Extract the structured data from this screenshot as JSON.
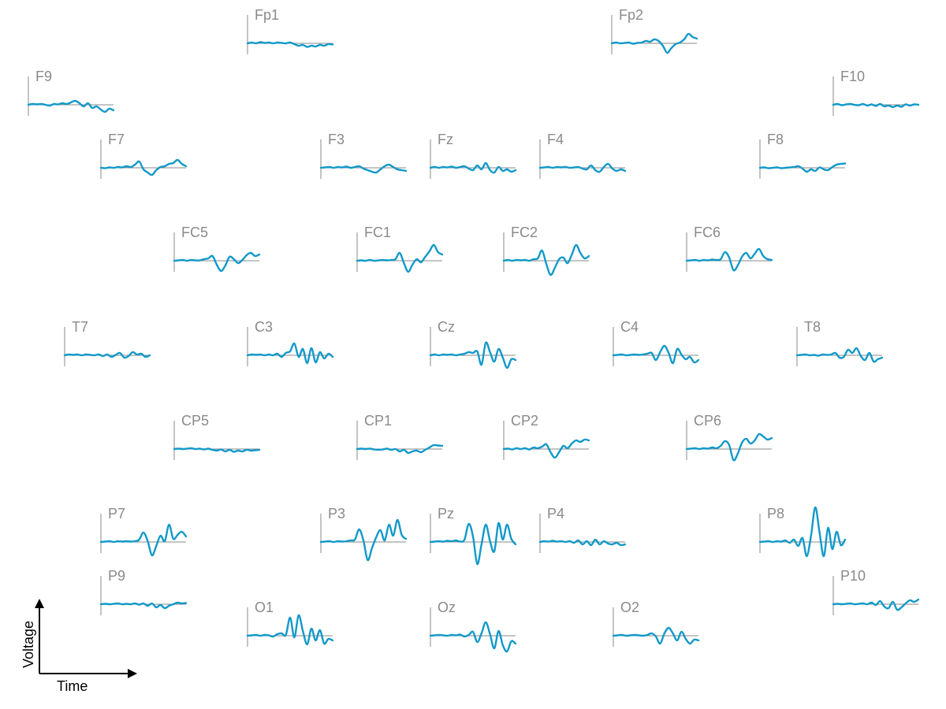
{
  "chart_data": {
    "type": "line",
    "layout": "topographic",
    "title": "",
    "grid": false,
    "colors": {
      "trace": "#1199c9",
      "axis": "#888888",
      "label": "#8a8a8a",
      "legend": "#000000"
    },
    "legend": {
      "xlabel": "Time",
      "ylabel": "Voltage",
      "placement": "bottom-left"
    },
    "time_samples": 21,
    "channels": [
      {
        "name": "Fp1",
        "values": [
          0,
          0.1,
          0,
          0.15,
          0.05,
          0.1,
          0,
          0.1,
          0.05,
          0,
          0.1,
          -0.1,
          -0.3,
          -0.2,
          -0.45,
          -0.3,
          -0.4,
          -0.2,
          -0.3,
          -0.1,
          -0.15
        ]
      },
      {
        "name": "Fp2",
        "values": [
          0,
          0.1,
          0,
          0.05,
          0.1,
          -0.05,
          0.05,
          0.1,
          0.3,
          0.2,
          0.5,
          0.3,
          -0.3,
          -1.2,
          -0.6,
          -0.1,
          0.1,
          0.5,
          1.2,
          0.8,
          0.6
        ]
      },
      {
        "name": "F9",
        "values": [
          0,
          0.1,
          0.05,
          0.1,
          0,
          -0.1,
          0.1,
          0.05,
          0.2,
          0.1,
          0.3,
          0.5,
          0.2,
          -0.2,
          0.2,
          -0.4,
          -0.2,
          -0.6,
          -0.9,
          -0.5,
          -0.7
        ]
      },
      {
        "name": "F10",
        "values": [
          0,
          0.1,
          -0.05,
          0.05,
          0.1,
          0,
          -0.05,
          0.1,
          -0.1,
          0.05,
          -0.15,
          0.1,
          -0.2,
          -0.1,
          -0.3,
          -0.1,
          -0.25,
          0.05,
          -0.1,
          0.05,
          0
        ]
      },
      {
        "name": "F7",
        "values": [
          0,
          -0.05,
          0.05,
          0,
          0.1,
          0.05,
          0.2,
          0.1,
          0.4,
          0.8,
          -0.2,
          -0.6,
          -0.9,
          -0.3,
          0.1,
          0.2,
          0.5,
          0.6,
          1.0,
          0.5,
          0.2
        ]
      },
      {
        "name": "F3",
        "values": [
          0,
          0.05,
          0.1,
          0,
          0.1,
          0.05,
          0.15,
          0,
          0.1,
          0.2,
          -0.1,
          -0.3,
          -0.5,
          -0.6,
          -0.2,
          0.2,
          0.4,
          0.1,
          -0.2,
          -0.3,
          -0.4
        ]
      },
      {
        "name": "Fz",
        "values": [
          0,
          0.1,
          0,
          0.1,
          0.05,
          0.15,
          0,
          0.1,
          0.2,
          -0.1,
          -0.3,
          0.3,
          -0.2,
          0.6,
          -0.3,
          -0.6,
          0.1,
          -0.4,
          -0.2,
          -0.5,
          -0.3
        ]
      },
      {
        "name": "F4",
        "values": [
          0,
          0.05,
          0.1,
          0,
          0.1,
          0.05,
          0.1,
          0,
          0.05,
          0.1,
          -0.1,
          -0.2,
          0.3,
          -0.3,
          -0.5,
          0.1,
          0.5,
          -0.1,
          -0.4,
          -0.2,
          -0.4
        ]
      },
      {
        "name": "F8",
        "values": [
          0,
          0.05,
          -0.05,
          0,
          0.05,
          -0.05,
          0,
          0.05,
          0.1,
          0.2,
          -0.1,
          -0.5,
          -0.2,
          -0.4,
          0.05,
          -0.2,
          -0.3,
          0.1,
          0.4,
          0.5,
          0.55
        ]
      },
      {
        "name": "FC5",
        "values": [
          0,
          0.05,
          0.1,
          0,
          0.1,
          0.05,
          0.05,
          0.2,
          0.3,
          0.6,
          -0.5,
          -1.3,
          -0.6,
          0.5,
          0.2,
          -0.3,
          0.1,
          0.7,
          1.0,
          0.6,
          0.8
        ]
      },
      {
        "name": "FC1",
        "values": [
          0,
          0.05,
          0,
          0.1,
          0,
          0.05,
          0.1,
          0.05,
          0.1,
          0.2,
          1.0,
          -0.3,
          -1.4,
          -0.5,
          0.2,
          -0.2,
          0.5,
          1.2,
          2.0,
          1.1,
          0.8
        ]
      },
      {
        "name": "FC2",
        "values": [
          0,
          0.1,
          0,
          0.1,
          0.05,
          0.1,
          0,
          0.2,
          0.3,
          1.3,
          -0.4,
          -1.8,
          -0.9,
          0.2,
          0.4,
          -0.3,
          0.8,
          2.0,
          1.0,
          0.3,
          0.6
        ]
      },
      {
        "name": "FC6",
        "values": [
          0,
          0.05,
          0.1,
          0,
          0.1,
          0.05,
          0.15,
          0.1,
          0.2,
          1.1,
          0.4,
          -1.2,
          -0.6,
          0.5,
          1.0,
          0.3,
          0.9,
          1.5,
          0.6,
          0.2,
          0.1
        ]
      },
      {
        "name": "T7",
        "values": [
          0,
          0.1,
          0.05,
          0.1,
          0,
          0.1,
          0.05,
          0,
          0.1,
          -0.1,
          0.1,
          -0.2,
          0.05,
          0.3,
          -0.3,
          -0.1,
          0.4,
          0.1,
          0.2,
          -0.2,
          0
        ]
      },
      {
        "name": "C3",
        "values": [
          0,
          0.1,
          0.05,
          0.1,
          0,
          0.1,
          0,
          0.2,
          -0.2,
          0.3,
          0.5,
          1.5,
          -0.2,
          0.8,
          -1.0,
          0.9,
          -0.9,
          0.4,
          -0.4,
          0.2,
          -0.2
        ]
      },
      {
        "name": "Cz",
        "values": [
          0,
          0.1,
          0,
          0.1,
          0.05,
          0.1,
          0,
          0.1,
          0.2,
          0.4,
          0.3,
          0.5,
          -1.2,
          1.6,
          0.4,
          -0.8,
          0.8,
          -0.3,
          -1.6,
          -0.5,
          -0.6
        ]
      },
      {
        "name": "C4",
        "values": [
          0,
          0.05,
          0.1,
          0,
          0.05,
          0.1,
          0.05,
          0.1,
          0.2,
          0.3,
          -0.6,
          0.4,
          1.2,
          0.3,
          -1.0,
          0.8,
          0.1,
          -0.5,
          -0.2,
          -0.9,
          -0.6
        ]
      },
      {
        "name": "T8",
        "values": [
          0,
          0.05,
          0.1,
          0,
          0.05,
          -0.05,
          0.1,
          0.05,
          0.1,
          0.3,
          -0.3,
          -0.2,
          0.7,
          0.3,
          0.9,
          -0.1,
          -0.6,
          0.3,
          -0.8,
          -0.5,
          -0.3
        ]
      },
      {
        "name": "CP5",
        "values": [
          0,
          0.05,
          0,
          0.05,
          0.1,
          0,
          0.05,
          -0.05,
          0.05,
          -0.1,
          -0.2,
          -0.05,
          -0.3,
          -0.1,
          -0.35,
          -0.2,
          -0.3,
          -0.1,
          -0.2,
          -0.15,
          -0.1
        ]
      },
      {
        "name": "CP1",
        "values": [
          0,
          0.05,
          0,
          0.05,
          -0.05,
          -0.1,
          -0.05,
          0.05,
          -0.1,
          0,
          -0.3,
          -0.1,
          -0.5,
          -0.3,
          -0.2,
          -0.4,
          -0.1,
          0.2,
          0.5,
          0.45,
          0.4
        ]
      },
      {
        "name": "CP2",
        "values": [
          0,
          0.05,
          -0.05,
          0.1,
          0,
          0.1,
          -0.05,
          0.2,
          0.1,
          0.3,
          0.6,
          -0.4,
          -1.1,
          -0.4,
          0.4,
          0.1,
          0.7,
          1.1,
          0.9,
          1.2,
          1.1
        ]
      },
      {
        "name": "CP6",
        "values": [
          0,
          0.05,
          0.1,
          0,
          0.1,
          0.05,
          0.2,
          0.1,
          0.4,
          1.0,
          0.5,
          -1.4,
          -0.6,
          0.8,
          1.3,
          0.7,
          1.1,
          1.9,
          1.6,
          1.2,
          1.4
        ]
      },
      {
        "name": "P7",
        "values": [
          0,
          0.05,
          0.1,
          0,
          0.1,
          0.05,
          0.1,
          0.05,
          0.1,
          0.3,
          1.2,
          0.1,
          -1.7,
          -0.5,
          0.8,
          0.1,
          2.2,
          0.4,
          0.9,
          1.3,
          0.7
        ]
      },
      {
        "name": "P3",
        "values": [
          0,
          0.05,
          0.1,
          0,
          0.1,
          0.05,
          0.1,
          0.2,
          0.3,
          1.6,
          0.2,
          -2.3,
          -0.8,
          0.6,
          1.5,
          0.2,
          2.2,
          0.8,
          2.8,
          0.9,
          0.4
        ]
      },
      {
        "name": "Pz",
        "values": [
          0,
          0.05,
          0.1,
          0.05,
          0.15,
          0.1,
          0.2,
          0.05,
          0.3,
          2.3,
          0.7,
          -2.8,
          -0.3,
          2.2,
          0.1,
          -1.2,
          2.4,
          0.3,
          2.2,
          0.4,
          -0.3
        ]
      },
      {
        "name": "P4",
        "values": [
          0,
          0.1,
          0.05,
          0.15,
          0.05,
          0.1,
          0,
          0.1,
          -0.1,
          0.2,
          -0.3,
          0.1,
          -0.4,
          0.3,
          -0.3,
          0.1,
          -0.2,
          -0.3,
          -0.1,
          -0.4,
          -0.3
        ]
      },
      {
        "name": "P8",
        "values": [
          0,
          0.05,
          0.1,
          0,
          0.1,
          0.05,
          0.2,
          -0.1,
          0.3,
          -0.5,
          0.5,
          -1.8,
          0.8,
          4.4,
          1.2,
          -1.8,
          1.8,
          -0.9,
          1.3,
          -0.4,
          0.3
        ]
      },
      {
        "name": "P9",
        "values": [
          0,
          0.05,
          0,
          0.05,
          0.1,
          0,
          0.05,
          0,
          0.1,
          -0.05,
          0.1,
          -0.2,
          0.1,
          -0.4,
          -0.1,
          -0.5,
          -0.2,
          0,
          0.2,
          0.1,
          0.15
        ]
      },
      {
        "name": "P10",
        "values": [
          0,
          0.05,
          0,
          0.05,
          0.1,
          0,
          0.05,
          0.1,
          0,
          0.2,
          -0.1,
          0.4,
          -0.3,
          -0.5,
          0.3,
          -0.7,
          -0.4,
          0.1,
          0.5,
          0.3,
          0.6
        ]
      },
      {
        "name": "O1",
        "values": [
          0,
          0.05,
          0.1,
          0,
          0.1,
          0.05,
          -0.1,
          0.2,
          0.3,
          0.1,
          2.3,
          -0.2,
          2.6,
          0.6,
          -1.1,
          0.9,
          -0.6,
          0.7,
          -1.0,
          -0.4,
          -0.6
        ]
      },
      {
        "name": "Oz",
        "values": [
          0,
          0.05,
          0.1,
          0.05,
          0,
          0.1,
          0.05,
          0.15,
          -0.1,
          0.1,
          0.5,
          -0.8,
          0.3,
          1.7,
          0.2,
          -1.6,
          0.6,
          -1.2,
          -2.0,
          -0.7,
          -1.0
        ]
      },
      {
        "name": "O2",
        "values": [
          0,
          0.05,
          0.1,
          0,
          0.05,
          0.1,
          0.05,
          0,
          0.1,
          0.3,
          -0.1,
          -1.0,
          0.3,
          1.0,
          0.3,
          -0.6,
          0.5,
          -0.4,
          -1.0,
          -0.5,
          -0.6
        ]
      }
    ]
  }
}
